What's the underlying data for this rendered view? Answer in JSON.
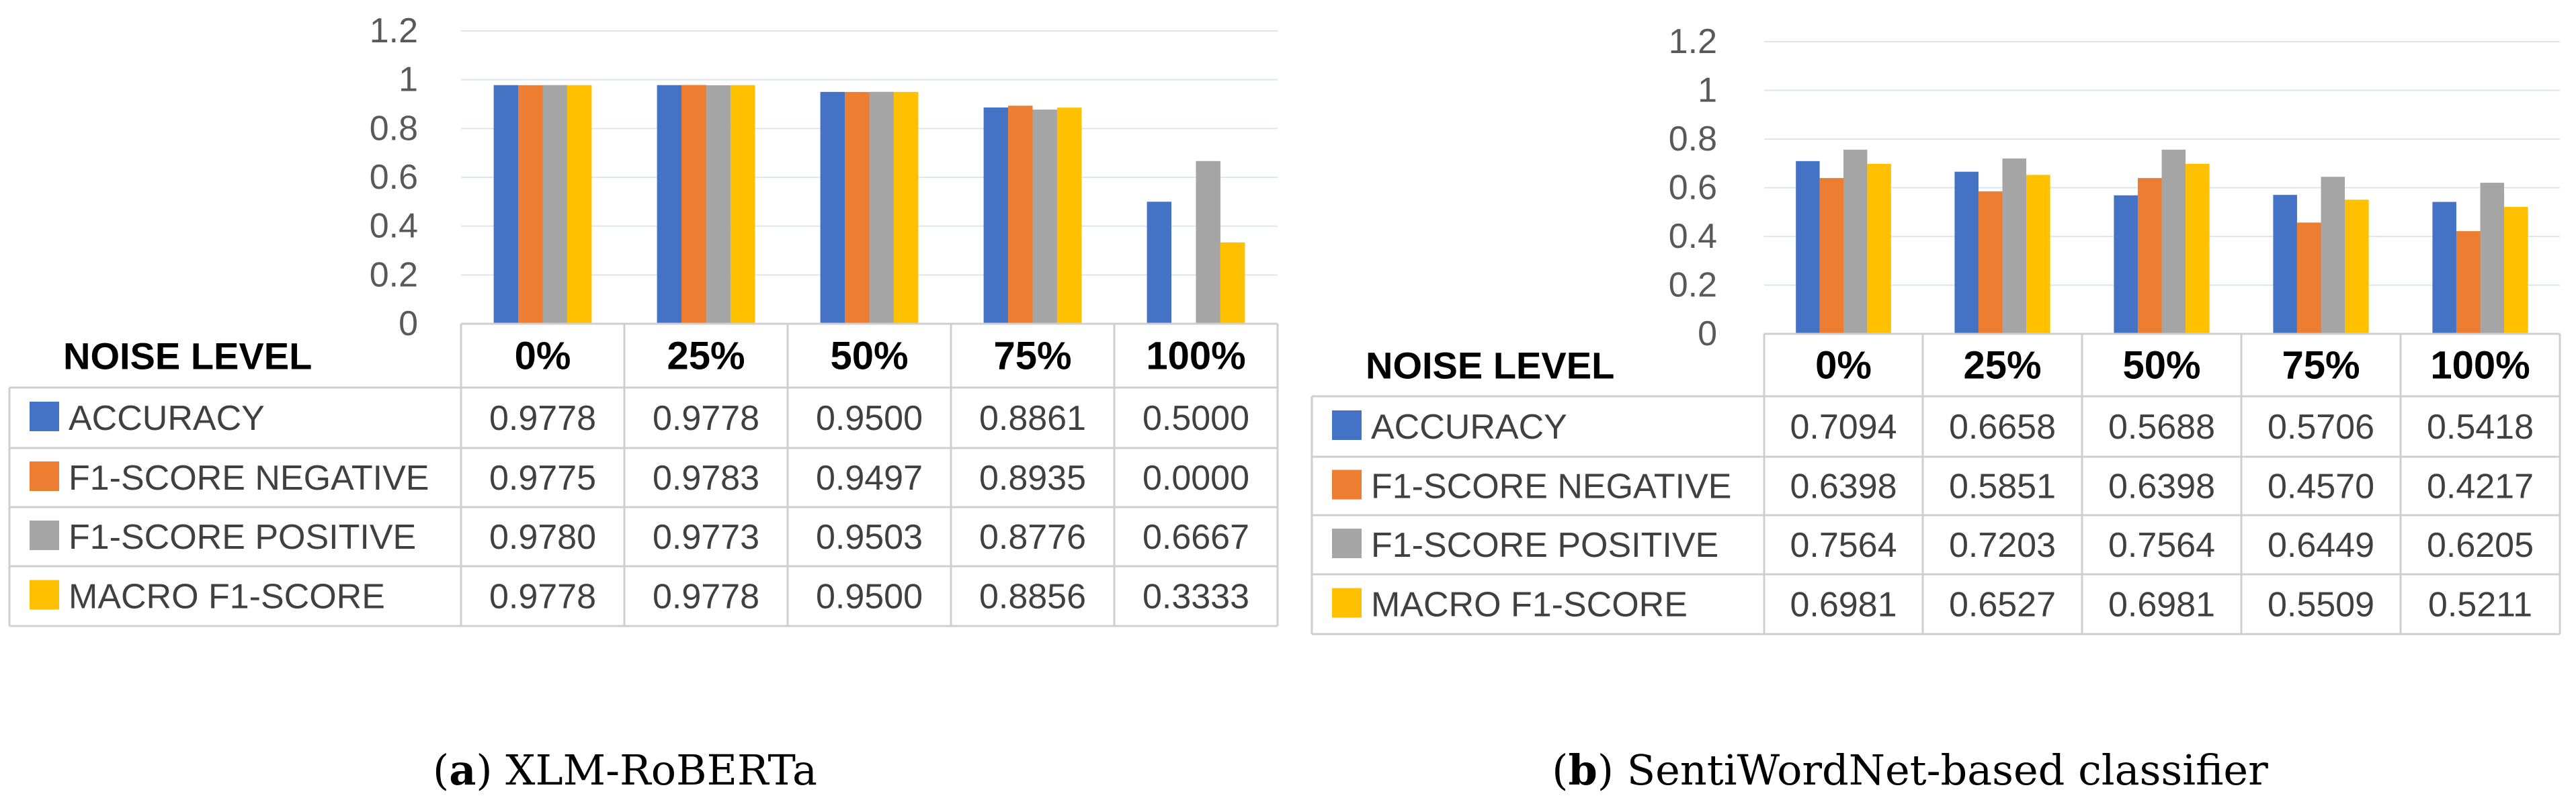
{
  "chart_data": [
    {
      "type": "bar",
      "title": "",
      "xlabel": "NOISE LEVEL",
      "ylabel": "",
      "ylim": [
        0,
        1.2
      ],
      "yticks": [
        "0",
        "0.2",
        "0.4",
        "0.6",
        "0.8",
        "1",
        "1.2"
      ],
      "grid": true,
      "categories": [
        "0%",
        "25%",
        "50%",
        "75%",
        "100%"
      ],
      "series": [
        {
          "name": "ACCURACY",
          "color": "#4472c4",
          "values": [
            0.9778,
            0.9778,
            0.95,
            0.8861,
            0.5
          ],
          "labels": [
            "0.9778",
            "0.9778",
            "0.9500",
            "0.8861",
            "0.5000"
          ]
        },
        {
          "name": "F1-SCORE NEGATIVE",
          "color": "#ed7d31",
          "values": [
            0.9775,
            0.9783,
            0.9497,
            0.8935,
            0.0
          ],
          "labels": [
            "0.9775",
            "0.9783",
            "0.9497",
            "0.8935",
            "0.0000"
          ]
        },
        {
          "name": "F1-SCORE POSITIVE",
          "color": "#a5a5a5",
          "values": [
            0.978,
            0.9773,
            0.9503,
            0.8776,
            0.6667
          ],
          "labels": [
            "0.9780",
            "0.9773",
            "0.9503",
            "0.8776",
            "0.6667"
          ]
        },
        {
          "name": "MACRO F1-SCORE",
          "color": "#ffc000",
          "values": [
            0.9778,
            0.9778,
            0.95,
            0.8856,
            0.3333
          ],
          "labels": [
            "0.9778",
            "0.9778",
            "0.9500",
            "0.8856",
            "0.3333"
          ]
        }
      ],
      "caption_prefix": "(",
      "caption_letter": "a",
      "caption_suffix": ") XLM-RoBERTa"
    },
    {
      "type": "bar",
      "title": "",
      "xlabel": "NOISE LEVEL",
      "ylabel": "",
      "ylim": [
        0,
        1.2
      ],
      "yticks": [
        "0",
        "0.2",
        "0.4",
        "0.6",
        "0.8",
        "1",
        "1.2"
      ],
      "grid": true,
      "categories": [
        "0%",
        "25%",
        "50%",
        "75%",
        "100%"
      ],
      "series": [
        {
          "name": "ACCURACY",
          "color": "#4472c4",
          "values": [
            0.7094,
            0.6658,
            0.5688,
            0.5706,
            0.5418
          ],
          "labels": [
            "0.7094",
            "0.6658",
            "0.5688",
            "0.5706",
            "0.5418"
          ]
        },
        {
          "name": "F1-SCORE NEGATIVE",
          "color": "#ed7d31",
          "values": [
            0.6398,
            0.5851,
            0.6398,
            0.457,
            0.4217
          ],
          "labels": [
            "0.6398",
            "0.5851",
            "0.6398",
            "0.4570",
            "0.4217"
          ]
        },
        {
          "name": "F1-SCORE POSITIVE",
          "color": "#a5a5a5",
          "values": [
            0.7564,
            0.7203,
            0.7564,
            0.6449,
            0.6205
          ],
          "labels": [
            "0.7564",
            "0.7203",
            "0.7564",
            "0.6449",
            "0.6205"
          ]
        },
        {
          "name": "MACRO F1-SCORE",
          "color": "#ffc000",
          "values": [
            0.6981,
            0.6527,
            0.6981,
            0.5509,
            0.5211
          ],
          "labels": [
            "0.6981",
            "0.6527",
            "0.6981",
            "0.5509",
            "0.5211"
          ]
        }
      ],
      "caption_prefix": "(",
      "caption_letter": "b",
      "caption_suffix": ") SentiWordNet-based classifier"
    }
  ]
}
